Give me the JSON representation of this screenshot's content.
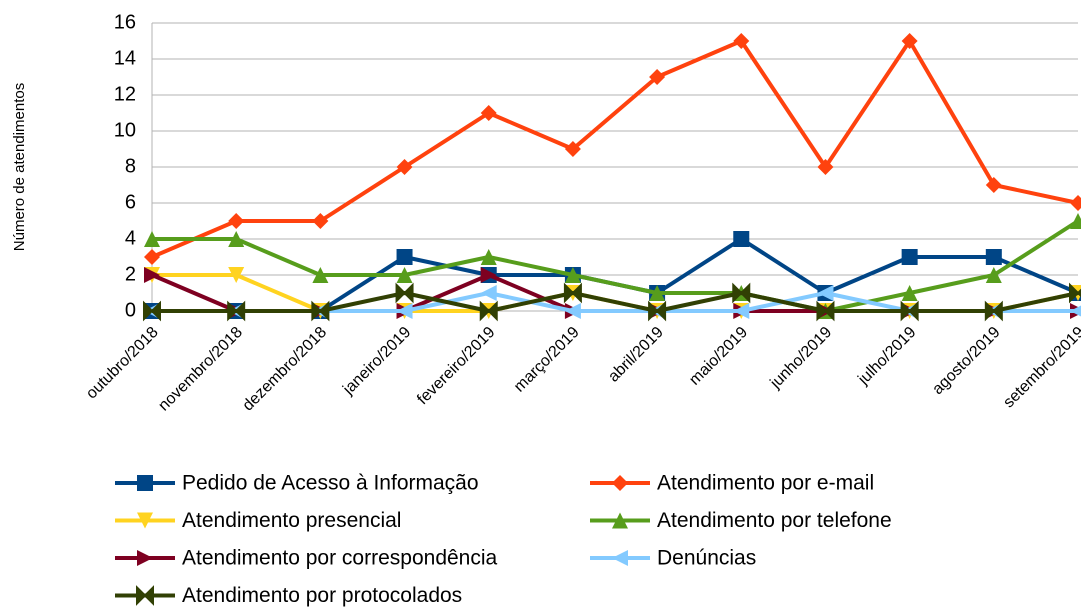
{
  "chart_data": {
    "type": "line",
    "y_label": "Número de atendimentos",
    "categories": [
      "outubro/2018",
      "novembro/2018",
      "dezembro/2018",
      "janeiro/2019",
      "fevereiro/2019",
      "março/2019",
      "abril/2019",
      "maio/2019",
      "junho/2019",
      "julho/2019",
      "agosto/2019",
      "setembro/2019"
    ],
    "series": [
      {
        "name": "Pedido de Acesso à Informação",
        "color": "#004586",
        "marker": "square",
        "values": [
          0,
          0,
          0,
          3,
          2,
          2,
          1,
          4,
          1,
          3,
          3,
          1
        ]
      },
      {
        "name": "Atendimento por e-mail",
        "color": "#ff420e",
        "marker": "diamond",
        "values": [
          3,
          5,
          5,
          8,
          11,
          9,
          13,
          15,
          8,
          15,
          7,
          6
        ]
      },
      {
        "name": "Atendimento presencial",
        "color": "#ffd320",
        "marker": "triangle-down",
        "values": [
          2,
          2,
          0,
          0,
          0,
          1,
          0,
          0,
          0,
          0,
          0,
          1
        ]
      },
      {
        "name": "Atendimento por telefone",
        "color": "#579d1c",
        "marker": "triangle-up",
        "values": [
          4,
          4,
          2,
          2,
          3,
          2,
          1,
          1,
          0,
          1,
          2,
          5
        ]
      },
      {
        "name": "Atendimento por correspondência",
        "color": "#7e0021",
        "marker": "triangle-right",
        "values": [
          2,
          0,
          0,
          0,
          2,
          0,
          0,
          0,
          0,
          0,
          0,
          0
        ]
      },
      {
        "name": "Denúncias",
        "color": "#83caff",
        "marker": "triangle-left",
        "values": [
          0,
          0,
          0,
          0,
          1,
          0,
          0,
          0,
          1,
          0,
          0,
          0
        ]
      },
      {
        "name": "Atendimento por protocolados",
        "color": "#314004",
        "marker": "bowtie",
        "values": [
          0,
          0,
          0,
          1,
          0,
          1,
          0,
          1,
          0,
          0,
          0,
          1
        ]
      }
    ],
    "ylim": [
      0,
      16
    ],
    "yticks": [
      0,
      2,
      4,
      6,
      8,
      10,
      12,
      14,
      16
    ],
    "grid": true,
    "legend": "bottom"
  }
}
